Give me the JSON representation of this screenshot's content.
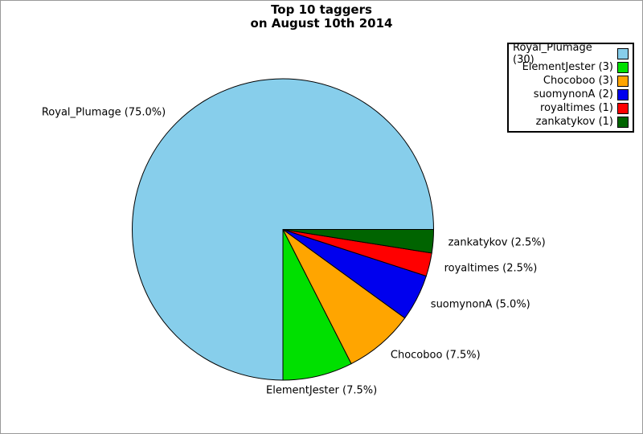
{
  "title": {
    "line1": "Top 10 taggers",
    "line2": "on August 10th 2014"
  },
  "chart_data": {
    "type": "pie",
    "title": "Top 10 taggers on August 10th 2014",
    "start_angle_deg": 0,
    "direction": "counterclockwise",
    "legend_position": "upper-right",
    "slices": [
      {
        "label": "Royal_Plumage",
        "count": 30,
        "percent": 75.0,
        "color": "#87CEEB",
        "pie_label": "Royal_Plumage (75.0%)",
        "legend_label": "Royal_Plumage (30)"
      },
      {
        "label": "ElementJester",
        "count": 3,
        "percent": 7.5,
        "color": "#00E000",
        "pie_label": "ElementJester (7.5%)",
        "legend_label": "ElementJester (3)"
      },
      {
        "label": "Chocoboo",
        "count": 3,
        "percent": 7.5,
        "color": "#FFA500",
        "pie_label": "Chocoboo (7.5%)",
        "legend_label": "Chocoboo (3)"
      },
      {
        "label": "suomynonA",
        "count": 2,
        "percent": 5.0,
        "color": "#0000EE",
        "pie_label": "suomynonA (5.0%)",
        "legend_label": "suomynonA (2)"
      },
      {
        "label": "royaltimes",
        "count": 1,
        "percent": 2.5,
        "color": "#FF0000",
        "pie_label": "royaltimes (2.5%)",
        "legend_label": "royaltimes (1)"
      },
      {
        "label": "zankatykov",
        "count": 1,
        "percent": 2.5,
        "color": "#006400",
        "pie_label": "zankatykov (2.5%)",
        "legend_label": "zankatykov (1)"
      }
    ]
  }
}
